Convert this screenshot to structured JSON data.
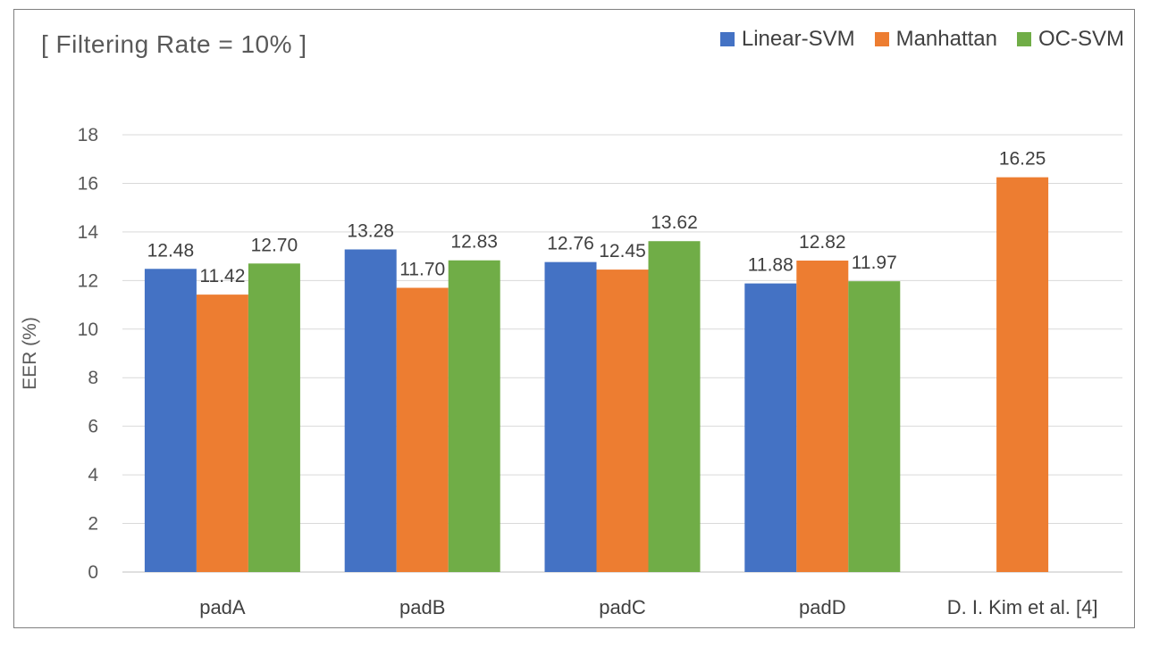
{
  "chart_data": {
    "type": "bar",
    "title": "[ Filtering Rate = 10% ]",
    "xlabel": "",
    "ylabel": "EER (%)",
    "ylim": [
      0,
      18
    ],
    "yticks": [
      0,
      2,
      4,
      6,
      8,
      10,
      12,
      14,
      16,
      18
    ],
    "grid": true,
    "legend_position": "top-right",
    "categories": [
      "padA",
      "padB",
      "padC",
      "padD",
      "D. I. Kim et al. [4]"
    ],
    "series": [
      {
        "name": "Linear-SVM",
        "color": "#4472c4",
        "values": [
          12.48,
          13.28,
          12.76,
          11.88,
          null
        ],
        "labels": [
          "12.48",
          "13.28",
          "12.76",
          "11.88",
          ""
        ]
      },
      {
        "name": "Manhattan",
        "color": "#ed7d31",
        "values": [
          11.42,
          11.7,
          12.45,
          12.82,
          16.25
        ],
        "labels": [
          "11.42",
          "11.70",
          "12.45",
          "12.82",
          "16.25"
        ]
      },
      {
        "name": "OC-SVM",
        "color": "#70ad47",
        "values": [
          12.7,
          12.83,
          13.62,
          11.97,
          null
        ],
        "labels": [
          "12.70",
          "12.83",
          "13.62",
          "11.97",
          ""
        ]
      }
    ]
  }
}
